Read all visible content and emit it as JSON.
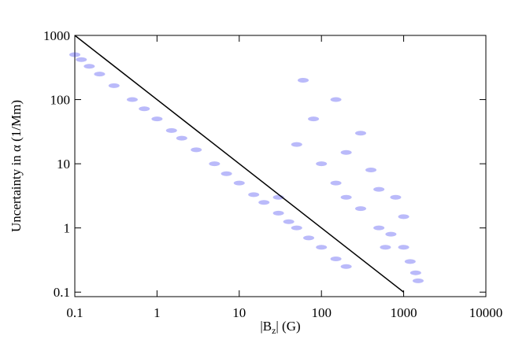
{
  "chart_data": {
    "type": "scatter",
    "xlabel": [
      "|B",
      "z",
      "| (G)"
    ],
    "ylabel": "Uncertainty in α (1/Mm)",
    "xlog": true,
    "ylog": true,
    "xlim": [
      0.1,
      10000
    ],
    "ylim": [
      0.085,
      1000
    ],
    "xticks": [
      0.1,
      1,
      10,
      100,
      1000,
      10000
    ],
    "yticks": [
      0.1,
      1,
      10,
      100,
      1000
    ],
    "series": [
      {
        "color": "#3a3af0",
        "x": [
          0.1,
          0.12,
          0.15,
          0.2,
          0.3,
          0.5,
          0.7,
          1,
          1.5,
          2,
          3,
          5,
          7,
          10,
          15,
          20,
          30,
          40,
          50,
          70,
          100,
          150,
          200,
          50,
          80,
          100,
          150,
          200,
          300,
          500,
          700,
          1000,
          1200,
          1500,
          300,
          150,
          60,
          400,
          800,
          1000,
          600,
          1400,
          200,
          30,
          500
        ],
        "values": [
          500,
          420,
          330,
          250,
          165,
          100,
          72,
          50,
          33,
          25,
          16.5,
          10,
          7,
          5,
          3.3,
          2.5,
          1.7,
          1.25,
          1,
          0.7,
          0.5,
          0.33,
          0.25,
          20,
          50,
          10,
          5,
          3,
          2,
          1,
          0.8,
          0.5,
          0.3,
          0.15,
          30,
          100,
          200,
          8,
          3,
          1.5,
          0.5,
          0.2,
          15,
          3,
          4
        ]
      }
    ],
    "line": {
      "color": "#000000",
      "x": [
        0.1,
        1000
      ],
      "values": [
        1000,
        0.1
      ]
    }
  }
}
